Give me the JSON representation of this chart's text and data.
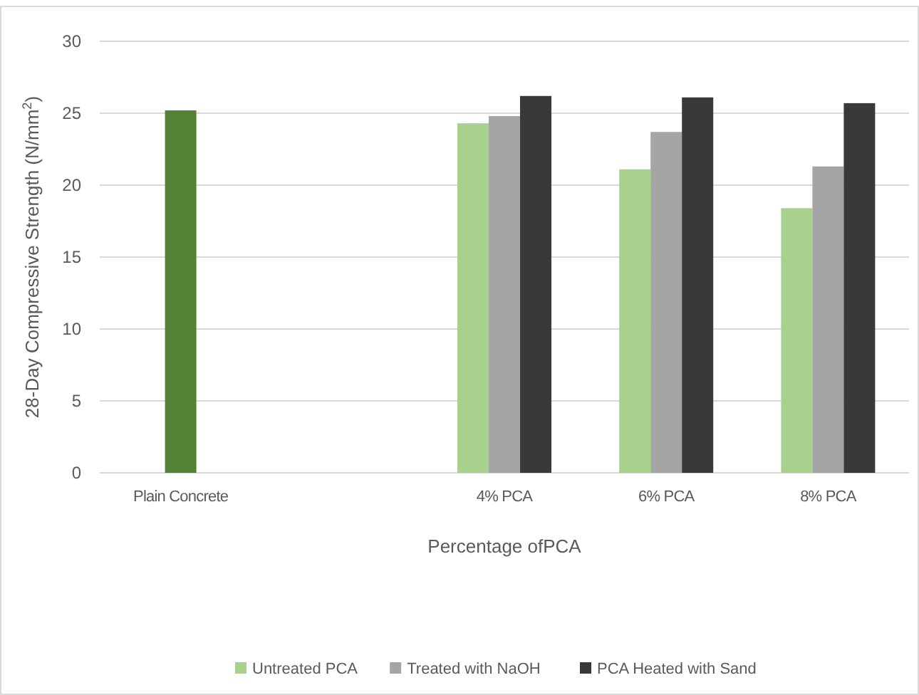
{
  "chart_data": {
    "type": "bar",
    "xlabel": "Percentage ofPCA",
    "ylabel": "28-Day Compressive Strength (N/mm$^{2}$)",
    "categories": [
      "Plain Concrete",
      null,
      "4% PCA",
      "6% PCA",
      "8% PCA"
    ],
    "series": [
      {
        "color": "#548235",
        "values": [
          25.2,
          null,
          null,
          null,
          null
        ]
      },
      {
        "name": "Untreated PCA",
        "color": "#a9d18e",
        "values": [
          null,
          null,
          24.3,
          21.1,
          18.4
        ]
      },
      {
        "name": "Treated with NaOH",
        "color": "#a5a5a5",
        "values": [
          null,
          null,
          24.8,
          23.7,
          21.3
        ]
      },
      {
        "name": "PCA Heated with Sand",
        "color": "#3a3838",
        "values": [
          null,
          null,
          26.2,
          26.1,
          25.7
        ]
      }
    ],
    "ylim": [
      0,
      30
    ],
    "yticks": [
      0,
      5,
      10,
      15,
      20,
      25,
      30
    ],
    "grid": "y",
    "legend": "bottom"
  }
}
